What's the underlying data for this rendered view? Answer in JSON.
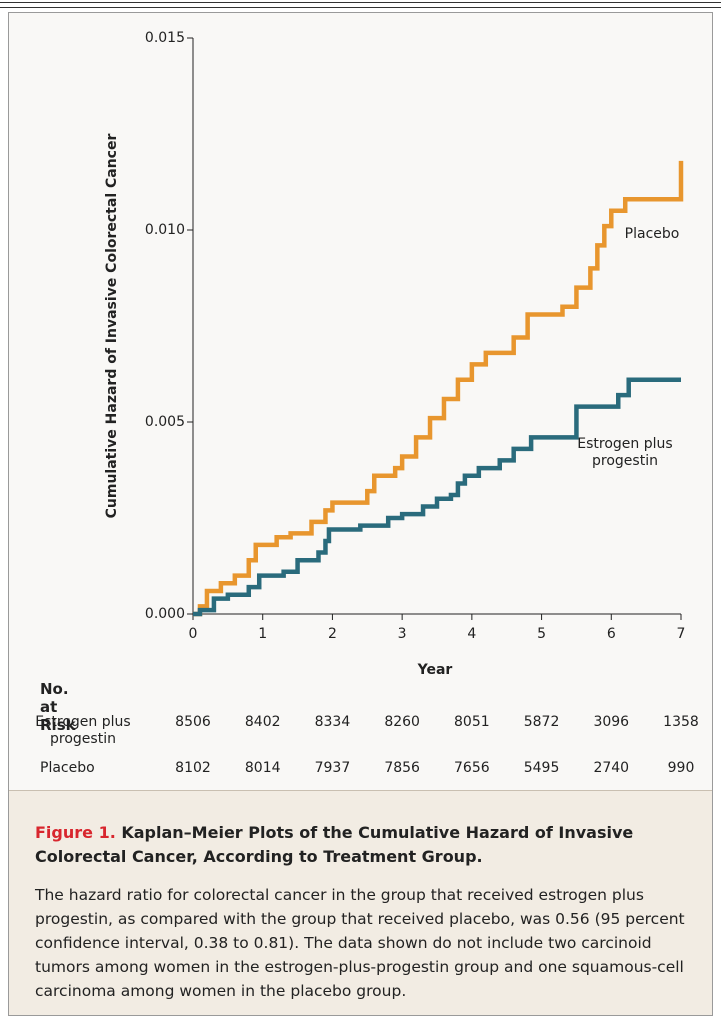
{
  "chart_data": {
    "type": "line",
    "step": true,
    "xlabel": "Year",
    "ylabel": "Cumulative Hazard of Invasive Colorectal Cancer",
    "xlim": [
      0,
      7
    ],
    "xticks": [
      0,
      1,
      2,
      3,
      4,
      5,
      6,
      7
    ],
    "ylim": [
      0,
      0.015
    ],
    "yticks": [
      {
        "value": 0,
        "label": "0.000"
      },
      {
        "value": 0.005,
        "label": "0.005"
      },
      {
        "value": 0.01,
        "label": "0.010"
      },
      {
        "value": 0.015,
        "label": "0.015"
      }
    ],
    "series": [
      {
        "name": "Placebo",
        "color": "#e8962e",
        "x": [
          0,
          0.1,
          0.2,
          0.4,
          0.6,
          0.8,
          0.9,
          1.2,
          1.4,
          1.7,
          1.9,
          2.0,
          2.5,
          2.6,
          2.9,
          3.0,
          3.2,
          3.4,
          3.6,
          3.8,
          4.0,
          4.2,
          4.6,
          4.8,
          5.3,
          5.5,
          5.7,
          5.8,
          5.9,
          6.0,
          6.2,
          7.0
        ],
        "values": [
          0,
          0.0002,
          0.0006,
          0.0008,
          0.001,
          0.0014,
          0.0018,
          0.002,
          0.0021,
          0.0024,
          0.0027,
          0.0029,
          0.0032,
          0.0036,
          0.0038,
          0.0041,
          0.0046,
          0.0051,
          0.0056,
          0.0061,
          0.0065,
          0.0068,
          0.0072,
          0.0078,
          0.008,
          0.0085,
          0.009,
          0.0096,
          0.0101,
          0.0105,
          0.0108,
          0.0118
        ]
      },
      {
        "name": "Estrogen plus progestin",
        "color": "#2a6b7c",
        "x": [
          0,
          0.1,
          0.3,
          0.5,
          0.8,
          0.95,
          1.3,
          1.5,
          1.8,
          1.9,
          1.95,
          2.4,
          2.8,
          3.0,
          3.3,
          3.5,
          3.7,
          3.8,
          3.9,
          4.1,
          4.4,
          4.6,
          4.85,
          5.5,
          6.1,
          6.25,
          7.0
        ],
        "values": [
          0,
          0.0001,
          0.0004,
          0.0005,
          0.0007,
          0.001,
          0.0011,
          0.0014,
          0.0016,
          0.0019,
          0.0022,
          0.0023,
          0.0025,
          0.0026,
          0.0028,
          0.003,
          0.0031,
          0.0034,
          0.0036,
          0.0038,
          0.004,
          0.0043,
          0.0046,
          0.0054,
          0.0057,
          0.0061,
          0.0061
        ]
      }
    ]
  },
  "risk_table": {
    "title": "No. at Risk",
    "rows": [
      {
        "label": "Estrogen plus progestin",
        "values": [
          "8506",
          "8402",
          "8334",
          "8260",
          "8051",
          "5872",
          "3096",
          "1358"
        ]
      },
      {
        "label": "Placebo",
        "values": [
          "8102",
          "8014",
          "7937",
          "7856",
          "7656",
          "5495",
          "2740",
          "990"
        ]
      }
    ]
  },
  "caption": {
    "label": "Figure 1.",
    "title": "Kaplan–Meier Plots of the Cumulative Hazard of Invasive Colorectal Cancer, According to Treatment Group.",
    "body": "The hazard ratio for colorectal cancer in the group that received estrogen plus progestin, as compared with the group that received placebo, was 0.56 (95 percent confidence interval, 0.38 to 0.81). The data shown do not include two carcinoid tumors among women in the estrogen-plus-progestin group and one squamous-cell carcinoma among women in the placebo group."
  }
}
